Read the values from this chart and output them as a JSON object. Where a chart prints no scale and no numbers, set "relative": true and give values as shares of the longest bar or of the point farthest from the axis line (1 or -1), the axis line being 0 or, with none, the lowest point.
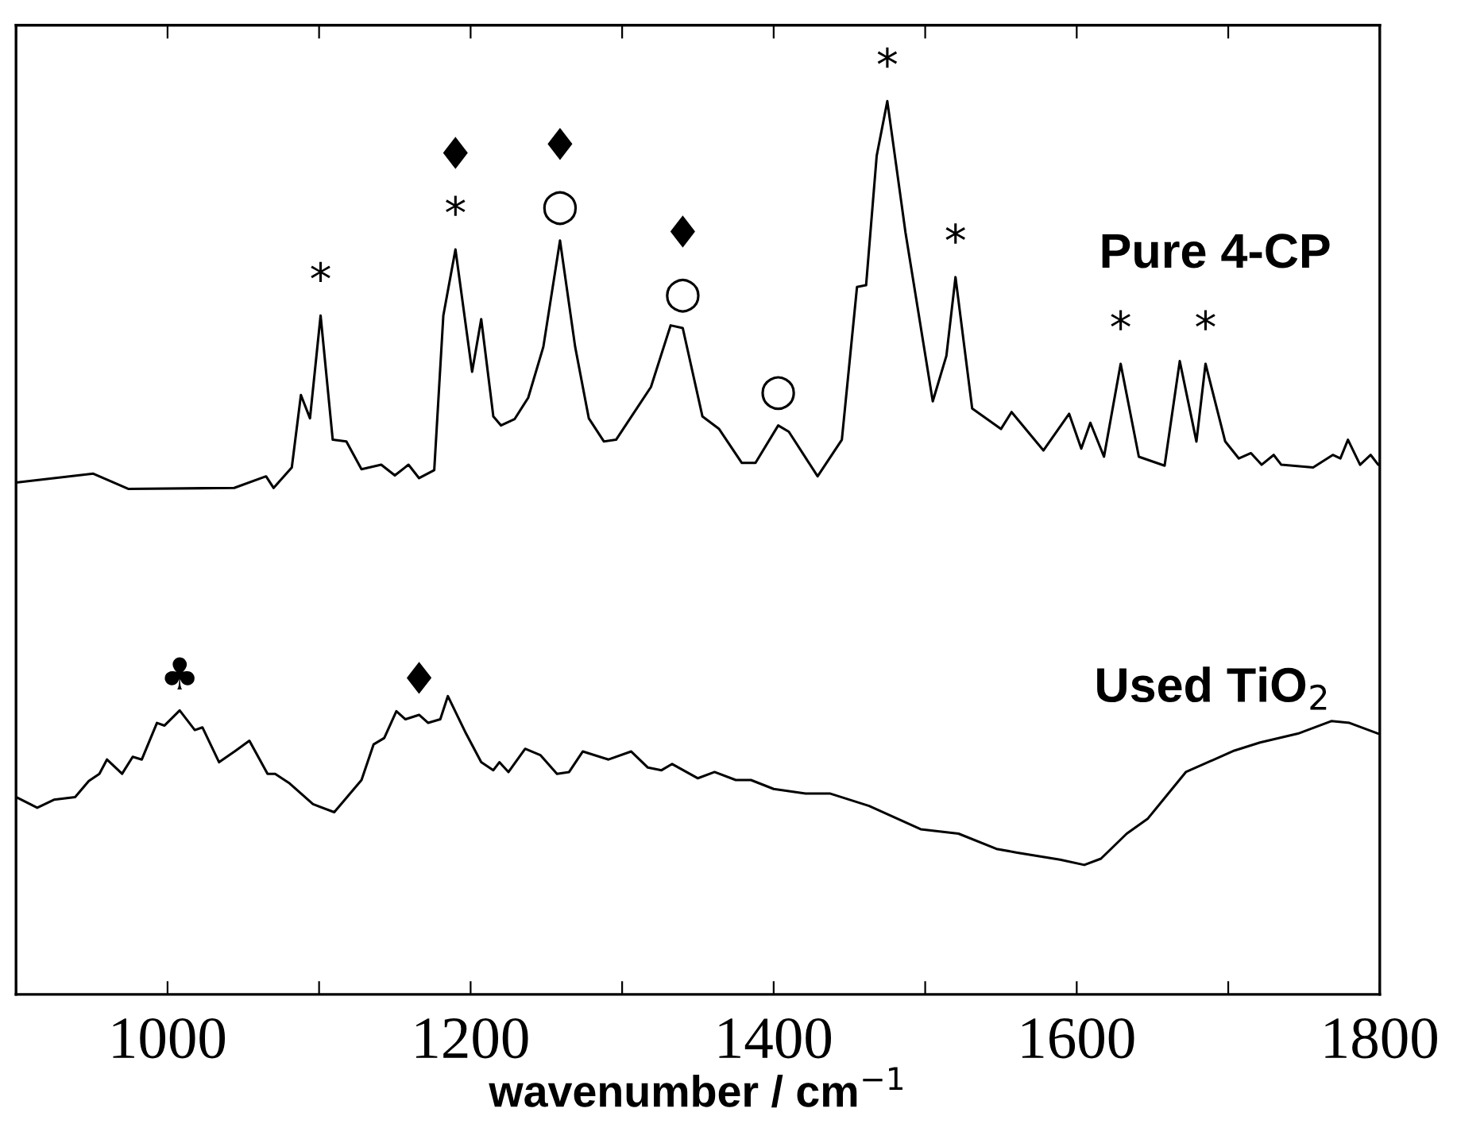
{
  "chart_data": {
    "type": "line",
    "relative": true,
    "xlabel": "wavenumber / cm$^{−1}$",
    "xlim": [
      900,
      1800
    ],
    "xticks": [
      {
        "value": 900,
        "label": null
      },
      1000,
      {
        "value": 1100,
        "label": null
      },
      1200,
      {
        "value": 1300,
        "label": null
      },
      1400,
      {
        "value": 1500,
        "label": null
      },
      1600,
      {
        "value": 1700,
        "label": null
      },
      1800
    ],
    "series": [
      {
        "name": "Pure 4-CP",
        "color": "#000000",
        "x": [
          900,
          951,
          974,
          1044,
          1065,
          1070,
          1082,
          1088,
          1094,
          1101,
          1109,
          1118,
          1128,
          1141,
          1150,
          1159,
          1166,
          1176,
          1182,
          1190,
          1201,
          1207,
          1215,
          1220,
          1229,
          1238,
          1248,
          1259,
          1269,
          1278,
          1288,
          1296,
          1319,
          1332,
          1340,
          1353,
          1364,
          1379,
          1388,
          1403,
          1410,
          1429,
          1445,
          1455,
          1461,
          1468,
          1475,
          1487,
          1505,
          1514,
          1520,
          1531,
          1550,
          1557,
          1578,
          1595,
          1603,
          1609,
          1618,
          1629,
          1641,
          1658,
          1668,
          1679,
          1685,
          1698,
          1707,
          1715,
          1722,
          1730,
          1735,
          1756,
          1769,
          1774,
          1779,
          1787,
          1794,
          1799
        ],
        "values": [
          0.573,
          0.583,
          0.566,
          0.567,
          0.58,
          0.567,
          0.59,
          0.671,
          0.645,
          0.76,
          0.621,
          0.619,
          0.588,
          0.593,
          0.581,
          0.593,
          0.578,
          0.587,
          0.76,
          0.834,
          0.697,
          0.756,
          0.647,
          0.637,
          0.644,
          0.668,
          0.725,
          0.844,
          0.725,
          0.645,
          0.619,
          0.621,
          0.68,
          0.749,
          0.746,
          0.647,
          0.633,
          0.595,
          0.595,
          0.637,
          0.63,
          0.58,
          0.621,
          0.792,
          0.794,
          0.939,
          1.0,
          0.853,
          0.664,
          0.715,
          0.803,
          0.656,
          0.633,
          0.652,
          0.609,
          0.65,
          0.611,
          0.64,
          0.602,
          0.706,
          0.602,
          0.592,
          0.709,
          0.619,
          0.706,
          0.619,
          0.6,
          0.606,
          0.593,
          0.604,
          0.593,
          0.59,
          0.604,
          0.6,
          0.621,
          0.593,
          0.604,
          0.593
        ]
      },
      {
        "name": "Used TiO$_{2}$",
        "color": "#000000",
        "x": [
          900,
          914,
          925,
          939,
          948,
          955,
          960,
          970,
          977,
          983,
          993,
          998,
          1008,
          1018,
          1023,
          1034,
          1045,
          1054,
          1066,
          1071,
          1080,
          1096,
          1110,
          1128,
          1136,
          1143,
          1151,
          1157,
          1166,
          1172,
          1180,
          1185,
          1197,
          1207,
          1215,
          1219,
          1225,
          1236,
          1246,
          1257,
          1265,
          1274,
          1291,
          1306,
          1317,
          1326,
          1333,
          1350,
          1361,
          1375,
          1385,
          1400,
          1421,
          1437,
          1463,
          1497,
          1522,
          1547,
          1560,
          1589,
          1605,
          1616,
          1633,
          1647,
          1672,
          1704,
          1721,
          1746,
          1768,
          1780,
          1799
        ],
        "values": [
          0.221,
          0.209,
          0.218,
          0.221,
          0.239,
          0.247,
          0.263,
          0.247,
          0.266,
          0.263,
          0.304,
          0.301,
          0.318,
          0.296,
          0.299,
          0.26,
          0.273,
          0.284,
          0.247,
          0.247,
          0.237,
          0.213,
          0.204,
          0.24,
          0.28,
          0.287,
          0.317,
          0.308,
          0.313,
          0.304,
          0.308,
          0.334,
          0.292,
          0.26,
          0.251,
          0.26,
          0.249,
          0.275,
          0.268,
          0.247,
          0.249,
          0.272,
          0.263,
          0.272,
          0.254,
          0.251,
          0.258,
          0.242,
          0.249,
          0.24,
          0.24,
          0.23,
          0.225,
          0.225,
          0.211,
          0.185,
          0.18,
          0.163,
          0.159,
          0.151,
          0.145,
          0.152,
          0.18,
          0.197,
          0.249,
          0.273,
          0.282,
          0.292,
          0.306,
          0.304,
          0.292
        ]
      }
    ],
    "annotations": [
      {
        "text": "*",
        "x": 1101,
        "y": 0.76
      },
      {
        "text": "*",
        "x": 1190,
        "y": 0.834
      },
      {
        "text": "♦",
        "x": 1190,
        "y": 0.834
      },
      {
        "text": "○",
        "x": 1259,
        "y": 0.844
      },
      {
        "text": "♦",
        "x": 1259,
        "y": 0.844
      },
      {
        "text": "○",
        "x": 1340,
        "y": 0.746
      },
      {
        "text": "♦",
        "x": 1340,
        "y": 0.746
      },
      {
        "text": "○",
        "x": 1403,
        "y": 0.637
      },
      {
        "text": "*",
        "x": 1475,
        "y": 1.0
      },
      {
        "text": "*",
        "x": 1520,
        "y": 0.803
      },
      {
        "text": "*",
        "x": 1629,
        "y": 0.706
      },
      {
        "text": "*",
        "x": 1685,
        "y": 0.706
      },
      {
        "text": "♣",
        "x": 1008,
        "y": 0.318
      },
      {
        "text": "♦",
        "x": 1166,
        "y": 0.313
      }
    ]
  }
}
